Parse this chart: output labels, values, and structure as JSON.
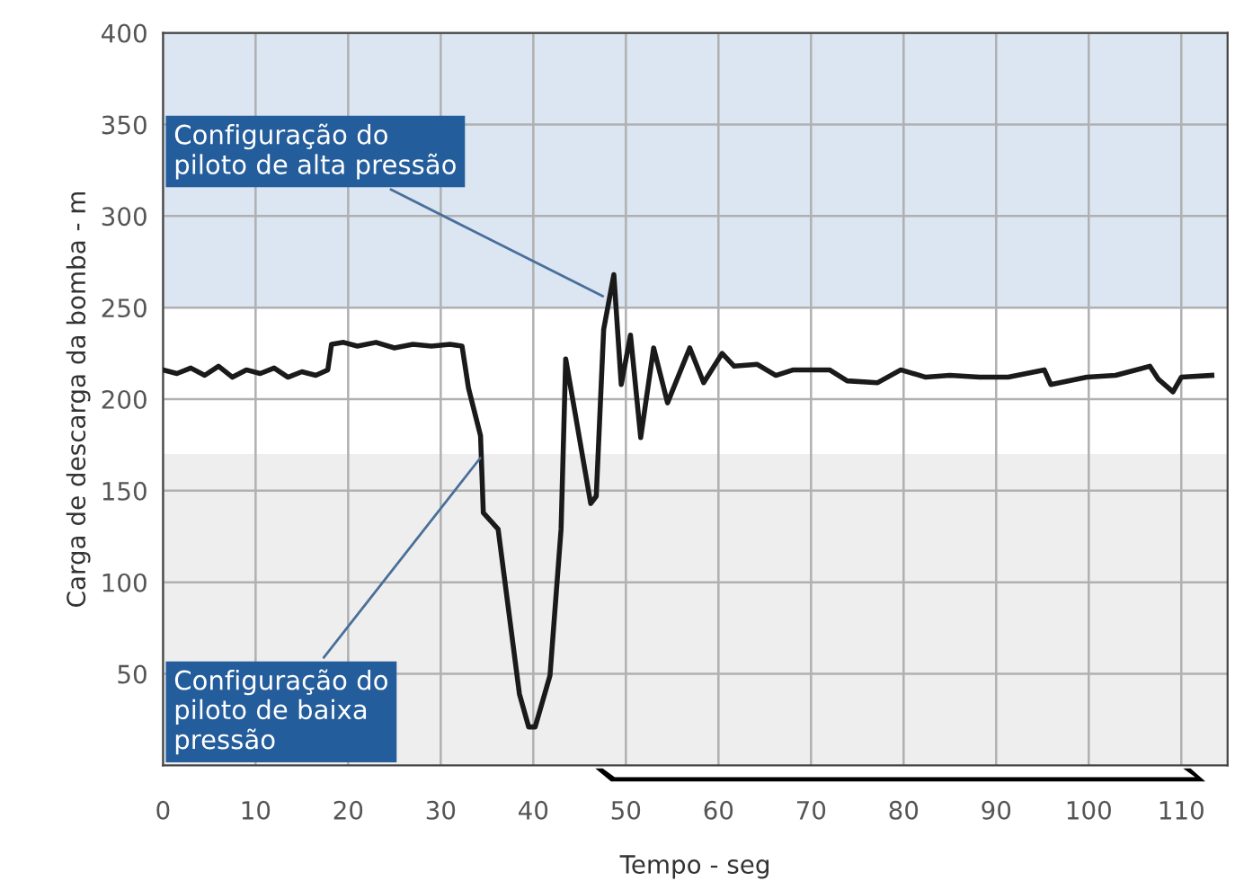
{
  "chart_data": {
    "type": "line",
    "xlabel": "Tempo - seg",
    "ylabel": "Carga de descarga da bomba - m",
    "xlim": [
      0,
      115
    ],
    "xticks": [
      0,
      10,
      20,
      30,
      40,
      50,
      60,
      70,
      80,
      90,
      100,
      110
    ],
    "ylim": [
      0,
      400
    ],
    "yticks": [
      50,
      100,
      150,
      200,
      250,
      300,
      350,
      400
    ],
    "grid": true,
    "marker": "none",
    "line_style": "solid",
    "bands": [
      {
        "axis": "y",
        "from": 250,
        "to": 400,
        "color": "#dbe6f2"
      },
      {
        "axis": "y",
        "from": 0,
        "to": 170,
        "color": "#efeeee"
      }
    ],
    "annotations": [
      {
        "text": "Configuração do\npiloto de alta pressão",
        "x": 48,
        "y": 255
      },
      {
        "text": "Configuração do\npiloto de baixa\npressão",
        "x": 34.6,
        "y": 170
      }
    ],
    "series": [
      {
        "color": "#1a1a1a",
        "x": [
          0,
          1.5,
          3,
          4.5,
          6,
          7.5,
          9,
          10.5,
          12,
          13.5,
          15,
          16.5,
          17.8,
          18.2,
          19.5,
          21,
          23,
          25,
          27,
          29,
          31,
          32.3,
          33,
          34.3,
          34.6,
          36.2,
          38.5,
          39.5,
          40.2,
          41.8,
          43,
          43.5,
          44.7,
          46.2,
          46.8,
          47.6,
          48.7,
          49.5,
          50.5,
          51.6,
          53,
          54.5,
          56.9,
          58.4,
          60.4,
          61.7,
          64.2,
          66.2,
          68.1,
          72,
          73.9,
          77.2,
          79.7,
          82.4,
          85,
          88.2,
          91.3,
          95.2,
          95.9,
          99.8,
          102.9,
          106.6,
          107.5,
          109.1,
          110,
          113.3
        ],
        "values": [
          216,
          214,
          217,
          213,
          218,
          212,
          216,
          214,
          217,
          212,
          215,
          213,
          216,
          230,
          231,
          229,
          231,
          228,
          230,
          229,
          230,
          229,
          206,
          180,
          138,
          129,
          39,
          21,
          21,
          49,
          129,
          222,
          187,
          143,
          147,
          238,
          268,
          208,
          235,
          179,
          228,
          198,
          228,
          209,
          225,
          218,
          219,
          213,
          216,
          216,
          210,
          209,
          216,
          212,
          213,
          212,
          212,
          216,
          208,
          212,
          213,
          218,
          211,
          204,
          212,
          213
        ]
      }
    ]
  }
}
